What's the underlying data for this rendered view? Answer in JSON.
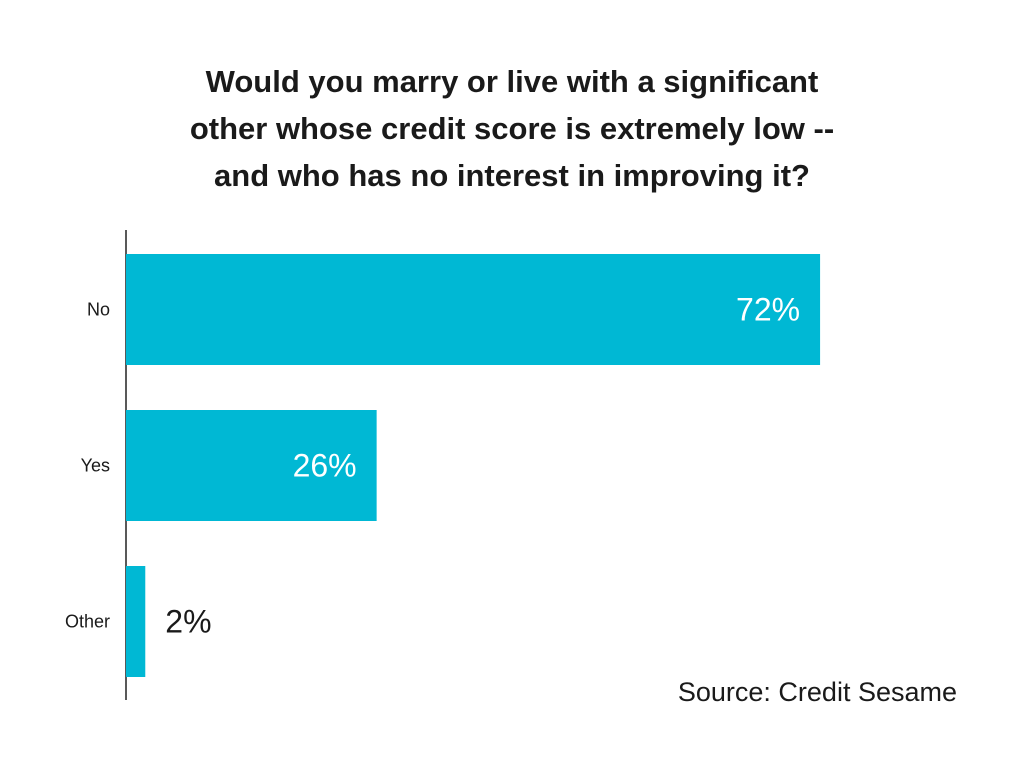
{
  "chart_data": {
    "type": "bar",
    "orientation": "horizontal",
    "title_lines": [
      "Would you marry or live with a significant",
      "other whose credit score is extremely low --",
      "and who has no interest in improving it?"
    ],
    "categories": [
      "No",
      "Yes",
      "Other"
    ],
    "values": [
      72,
      26,
      2
    ],
    "value_labels": [
      "72%",
      "26%",
      "2%"
    ],
    "xlim": [
      0,
      100
    ],
    "grid": false,
    "legend": "none",
    "bar_color": "#00b8d4",
    "source": "Source: Credit Sesame"
  }
}
